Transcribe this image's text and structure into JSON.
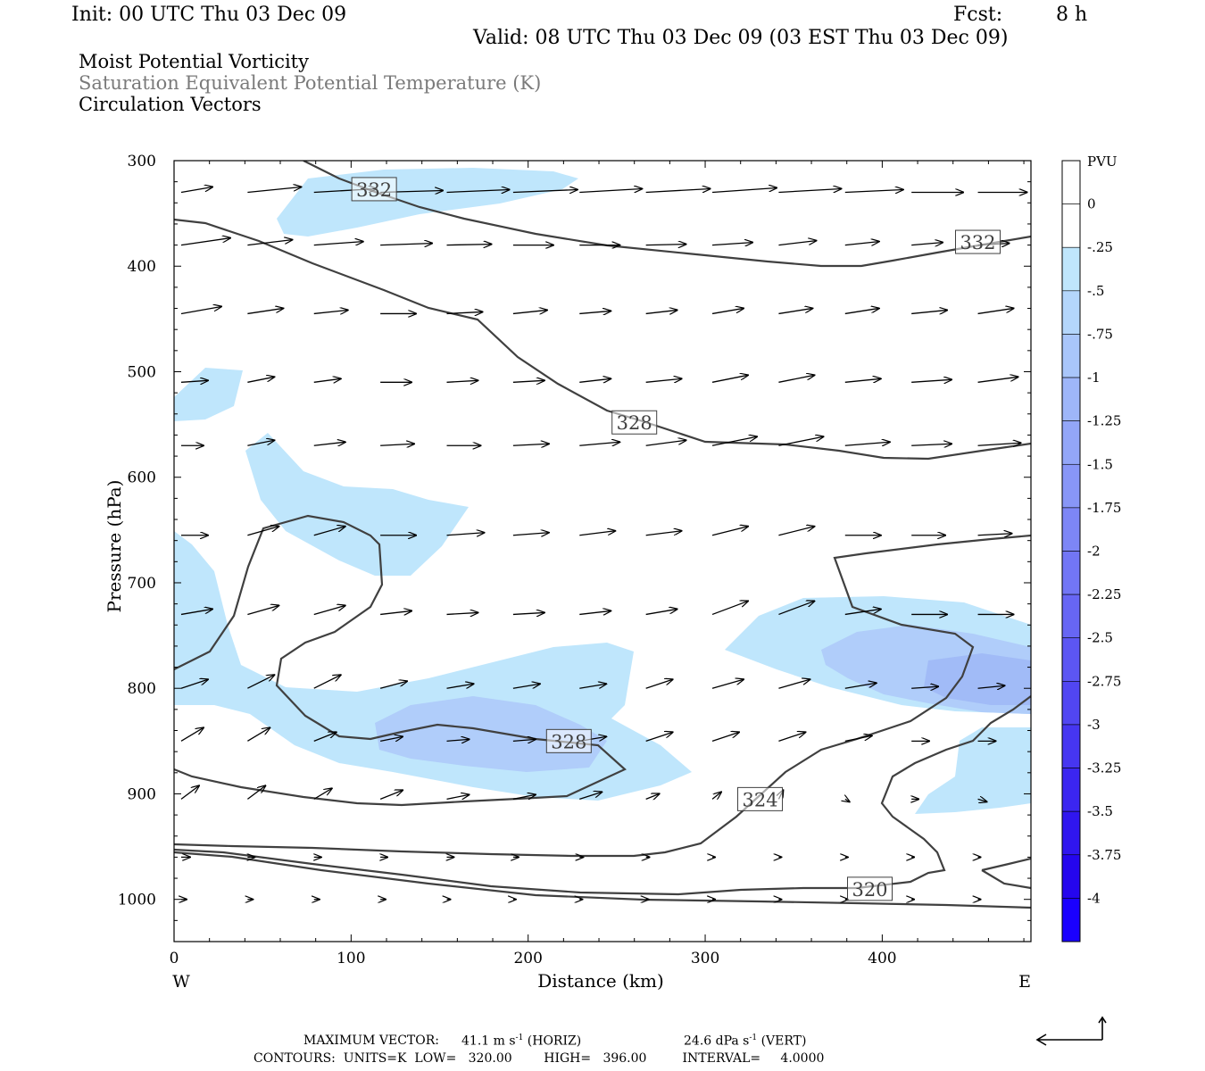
{
  "header": {
    "init": "Init: 00 UTC Thu 03 Dec 09",
    "fcst_label": "Fcst:",
    "fcst_value": "8 h",
    "valid": "Valid: 08 UTC Thu 03 Dec 09 (03 EST Thu 03 Dec 09)"
  },
  "titles": {
    "line1": "Moist Potential Vorticity",
    "line2": "Saturation Equivalent Potential Temperature (K)",
    "line3": "Circulation Vectors"
  },
  "footer": {
    "max_vector_label": "MAXIMUM VECTOR:",
    "max_vector_horiz": "41.1 m s",
    "horiz_exp": "-1",
    "horiz_tag": "(HORIZ)",
    "max_vector_vert": "24.6 dPa s",
    "vert_exp": "-1",
    "vert_tag": "(VERT)",
    "contours": "CONTOURS:  UNITS=K  LOW=   320.00        HIGH=   396.00         INTERVAL=     4.0000"
  },
  "chart_data": {
    "type": "cross-section",
    "xlabel": "Distance (km)",
    "ylabel": "Pressure (hPa)",
    "xlim": [
      0,
      484
    ],
    "ylim": [
      1040,
      300
    ],
    "x_ticks": [
      "0",
      "100",
      "200",
      "300",
      "400"
    ],
    "x_tick_values": [
      0,
      100,
      200,
      300,
      400
    ],
    "y_ticks": [
      "300",
      "400",
      "500",
      "600",
      "700",
      "800",
      "900",
      "1000"
    ],
    "y_tick_values": [
      300,
      400,
      500,
      600,
      700,
      800,
      900,
      1000
    ],
    "west_label": "W",
    "east_label": "E",
    "colorbar": {
      "unit": "PVU",
      "labels": [
        "0",
        "-.25",
        "-.5",
        "-.75",
        "-1",
        "-1.25",
        "-1.5",
        "-1.75",
        "-2",
        "-2.25",
        "-2.5",
        "-2.75",
        "-3",
        "-3.25",
        "-3.5",
        "-3.75",
        "-4"
      ],
      "colors": [
        "#ffffff",
        "#ffffff",
        "#bfe6fc",
        "#b4d6fb",
        "#a9c6fa",
        "#9eb6f9",
        "#93a6f8",
        "#8896f7",
        "#7d86f6",
        "#7276f5",
        "#6766f4",
        "#5c56f3",
        "#5146f2",
        "#4636f1",
        "#3b26f0",
        "#3016ef",
        "#2506ee",
        "#1a00ff"
      ]
    },
    "contour_labels": [
      {
        "text": "332",
        "x": 113,
        "p": 327
      },
      {
        "text": "332",
        "x": 454,
        "p": 377
      },
      {
        "text": "328",
        "x": 260,
        "p": 548
      },
      {
        "text": "328",
        "x": 223,
        "p": 850
      },
      {
        "text": "324",
        "x": 331,
        "p": 905
      },
      {
        "text": "320",
        "x": 393,
        "p": 990
      }
    ]
  }
}
